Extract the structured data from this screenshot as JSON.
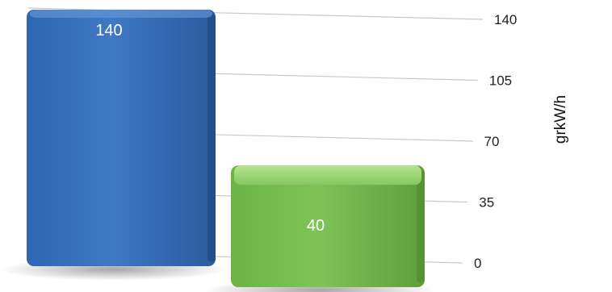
{
  "chart_data": {
    "type": "bar",
    "categories": [
      "",
      ""
    ],
    "values": [
      140,
      40
    ],
    "value_labels": [
      "140",
      "40"
    ],
    "ylabel": "grkW/h",
    "ylim": [
      0,
      140
    ],
    "yticks": [
      "0",
      "35",
      "70",
      "105",
      "140"
    ],
    "grid": true,
    "legend": "none",
    "colors": {
      "bar1_light": "#5a8fd0",
      "bar1_dark": "#2a5a9e",
      "bar2_light": "#94d46a",
      "bar2_dark": "#5fa23a",
      "grid": "#c8c8c8"
    }
  }
}
